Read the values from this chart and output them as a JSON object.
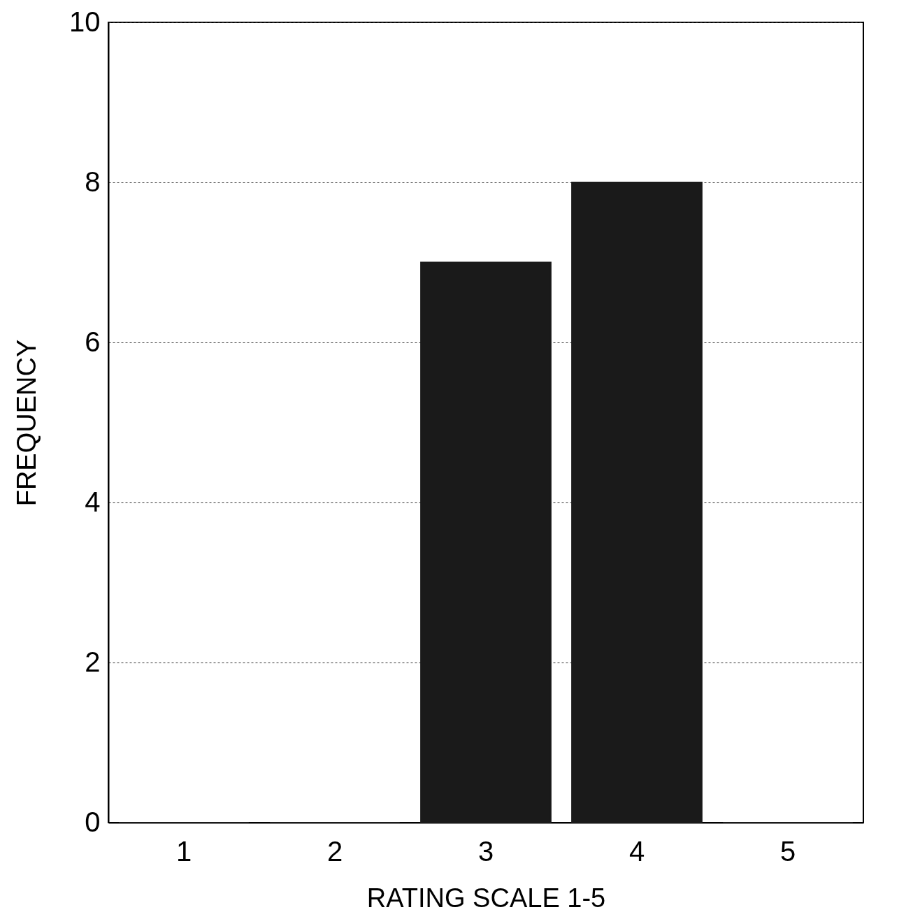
{
  "chart_data": {
    "type": "bar",
    "xlabel": "RATING SCALE 1-5",
    "ylabel": "FREQUENCY",
    "categories": [
      "1",
      "2",
      "3",
      "4",
      "5"
    ],
    "values": [
      0,
      0,
      7,
      8,
      0
    ],
    "color": "#1a1a1a",
    "ylim": [
      0,
      10
    ],
    "yticks": [
      0,
      2,
      4,
      6,
      8,
      10
    ],
    "grid": "y"
  }
}
